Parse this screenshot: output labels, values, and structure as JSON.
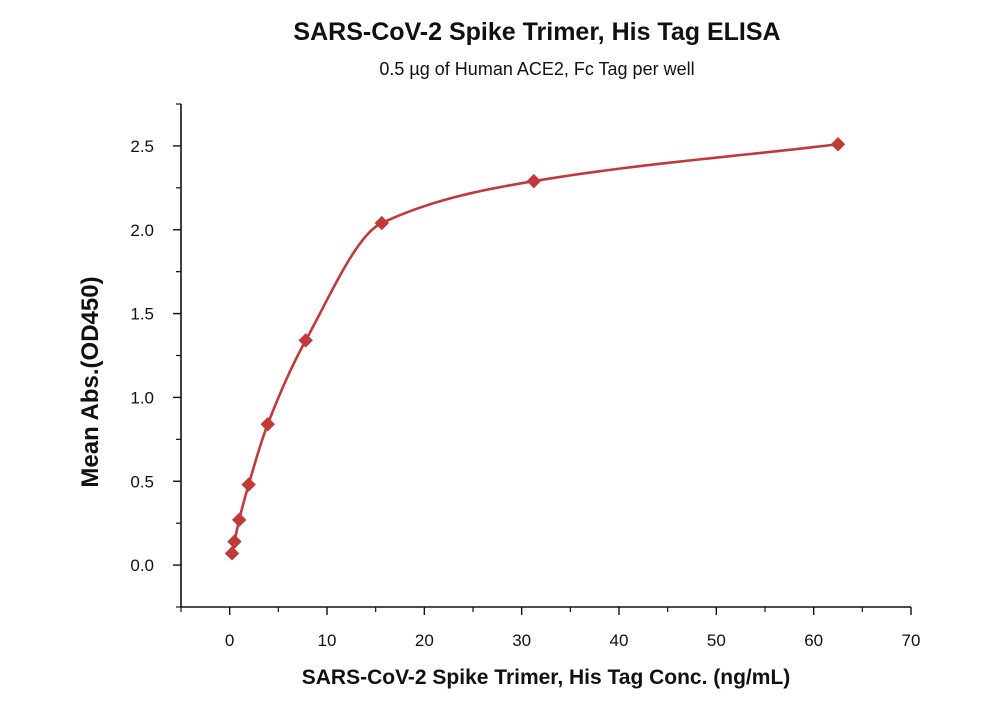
{
  "chart_data": {
    "type": "scatter",
    "title": "SARS-CoV-2 Spike Trimer, His Tag  ELISA",
    "subtitle": "0.5 µg of Human ACE2, Fc Tag per well",
    "xlabel": "SARS-CoV-2 Spike Trimer, His Tag  Conc. (ng/mL)",
    "ylabel": "Mean Abs.(OD450)",
    "xlim": [
      -5,
      70
    ],
    "ylim": [
      -0.25,
      2.75
    ],
    "x_ticks": [
      0,
      10,
      20,
      30,
      40,
      50,
      60,
      70
    ],
    "y_ticks": [
      0.0,
      0.5,
      1.0,
      1.5,
      2.0,
      2.5
    ],
    "x_tick_labels": [
      "0",
      "10",
      "20",
      "30",
      "40",
      "50",
      "60",
      "70"
    ],
    "y_tick_labels": [
      "0.0",
      "0.5",
      "1.0",
      "1.5",
      "2.0",
      "2.5"
    ],
    "grid": false,
    "marker": "diamond",
    "series": [
      {
        "x": [
          0.24,
          0.49,
          0.98,
          1.95,
          3.91,
          7.81,
          15.63,
          31.25,
          62.5
        ],
        "y": [
          0.07,
          0.14,
          0.27,
          0.48,
          0.84,
          1.34,
          2.04,
          2.29,
          2.51
        ],
        "color": "#c03a3a",
        "fit": "four-parameter logistic curve"
      }
    ]
  }
}
